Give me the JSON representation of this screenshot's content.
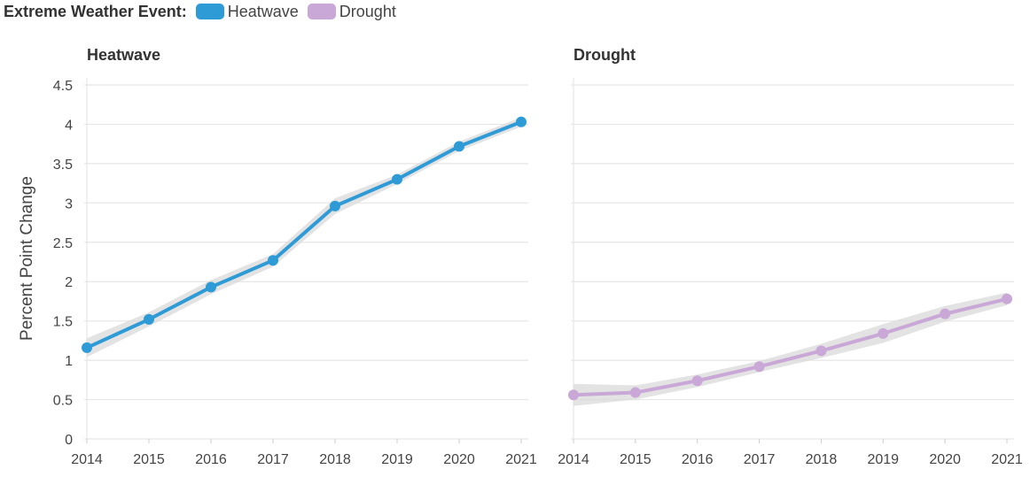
{
  "legend": {
    "title": "Extreme Weather Event:",
    "items": [
      {
        "label": "Heatwave",
        "color": "#2e9bd6"
      },
      {
        "label": "Drought",
        "color": "#c9a7d6"
      }
    ]
  },
  "chart_data": [
    {
      "type": "line",
      "title": "Heatwave",
      "xlabel": "",
      "ylabel": "Percent Point Change",
      "x": [
        "2014",
        "2015",
        "2016",
        "2017",
        "2018",
        "2019",
        "2020",
        "2021"
      ],
      "ylim": [
        0,
        4.5
      ],
      "yticks": [
        "0",
        "0.5",
        "1",
        "1.5",
        "2",
        "2.5",
        "3",
        "3.5",
        "4",
        "4.5"
      ],
      "grid": true,
      "series": [
        {
          "name": "Heatwave",
          "color": "#2e9bd6",
          "values": [
            1.16,
            1.52,
            1.93,
            2.27,
            2.96,
            3.3,
            3.72,
            4.03
          ],
          "lower": [
            1.04,
            1.43,
            1.84,
            2.19,
            2.86,
            3.24,
            3.66,
            3.97
          ],
          "upper": [
            1.28,
            1.61,
            2.02,
            2.35,
            3.06,
            3.36,
            3.78,
            4.09
          ]
        }
      ]
    },
    {
      "type": "line",
      "title": "Drought",
      "xlabel": "",
      "ylabel": "",
      "x": [
        "2014",
        "2015",
        "2016",
        "2017",
        "2018",
        "2019",
        "2020",
        "2021"
      ],
      "ylim": [
        0,
        4.5
      ],
      "grid": true,
      "series": [
        {
          "name": "Drought",
          "color": "#c9a7d6",
          "values": [
            0.56,
            0.59,
            0.74,
            0.92,
            1.12,
            1.34,
            1.59,
            1.78
          ],
          "lower": [
            0.42,
            0.5,
            0.66,
            0.85,
            1.03,
            1.22,
            1.49,
            1.7
          ],
          "upper": [
            0.7,
            0.68,
            0.82,
            0.99,
            1.21,
            1.46,
            1.69,
            1.86
          ]
        }
      ]
    }
  ]
}
